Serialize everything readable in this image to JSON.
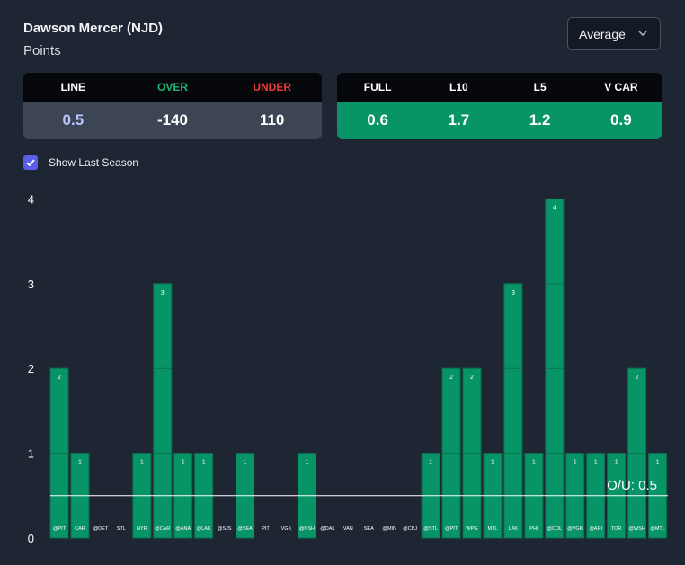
{
  "header": {
    "player_name": "Dawson Mercer (NJD)",
    "stat_name": "Points",
    "dropdown_value": "Average"
  },
  "line_card": {
    "headers": [
      "LINE",
      "OVER",
      "UNDER"
    ],
    "values": [
      "0.5",
      "-140",
      "110"
    ]
  },
  "avg_card": {
    "headers": [
      "FULL",
      "L10",
      "L5",
      "V CAR"
    ],
    "values": [
      "0.6",
      "1.7",
      "1.2",
      "0.9"
    ]
  },
  "show_last_season": {
    "label": "Show Last Season",
    "checked": true
  },
  "colors": {
    "bar": "#079568",
    "over": "#1fb577",
    "under": "#ef3b3b",
    "checkbox": "#5b5fe8"
  },
  "chart_data": {
    "type": "bar",
    "categories": [
      "@PIT",
      "CAR",
      "@DET",
      "STL",
      "NYR",
      "@CAR",
      "@ANA",
      "@LAK",
      "@SJS",
      "@SEA",
      "PIT",
      "VGK",
      "@NSH",
      "@DAL",
      "VAN",
      "SEA",
      "@MIN",
      "@CBJ",
      "@STL",
      "@PIT",
      "WPG",
      "MTL",
      "LAK",
      "PHI",
      "@COL",
      "@VGK",
      "@ARI",
      "TOR",
      "@WSH",
      "@MTL"
    ],
    "values": [
      2,
      1,
      0,
      0,
      1,
      3,
      1,
      1,
      0,
      1,
      0,
      0,
      1,
      0,
      0,
      0,
      0,
      0,
      1,
      2,
      2,
      1,
      3,
      1,
      4,
      1,
      1,
      1,
      2,
      1
    ],
    "ylim": [
      0,
      4
    ],
    "yticks": [
      "0",
      "1",
      "2",
      "3",
      "4"
    ],
    "line_value": 0.5,
    "line_label": "O/U: 0.5"
  }
}
